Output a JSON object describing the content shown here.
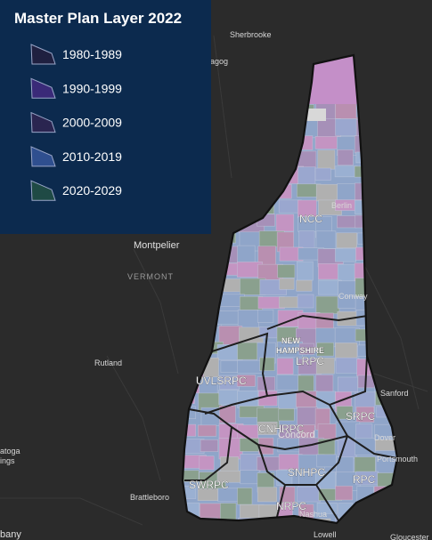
{
  "legend": {
    "title": "Master Plan Layer 2022",
    "items": [
      "1980-1989",
      "1990-1999",
      "2000-2009",
      "2010-2019",
      "2020-2029"
    ]
  },
  "places": {
    "sherbrooke": "Sherbrooke",
    "magog": "agog",
    "montpelier": "Montpelier",
    "vermont": "VERMONT",
    "rutland": "Rutland",
    "berlin": "Berlin",
    "conway": "Conway",
    "sanford": "Sanford",
    "dover": "Dover",
    "portsmouth": "Portsmouth",
    "concord": "Concord",
    "brattleboro": "Brattleboro",
    "nashua": "Nashua",
    "lowell": "Lowell",
    "albany": "bany",
    "saratoga": "atoga",
    "springs": "ings",
    "gloucester": "Gloucester",
    "new": "NEW",
    "hampshire": "HAMPSHIRE"
  },
  "regions": {
    "ncc": "NCC",
    "lrpc": "LRPC",
    "uvlsrpc": "UVLSRPC",
    "cnhrpc": "CNHRPC",
    "srpc": "SRPC",
    "snhpc": "SNHPC",
    "nrpc": "NRPC",
    "rpc": "RPC",
    "swrpc": "SWRPC"
  }
}
